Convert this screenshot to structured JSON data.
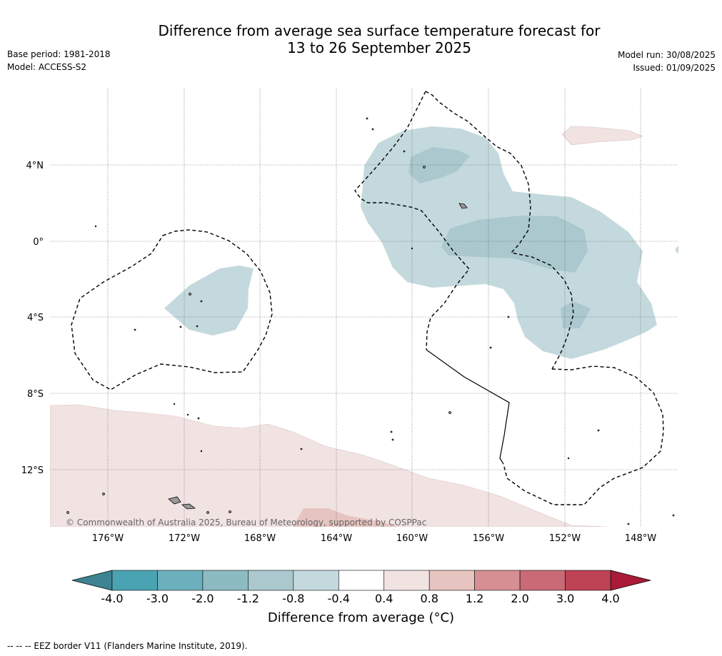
{
  "title_line1": "Difference from average sea surface temperature forecast for",
  "title_line2": "13 to 26 September 2025",
  "base_period": "Base period: 1981-2018",
  "model": "Model: ACCESS-S2",
  "model_run": "Model run: 30/08/2025",
  "issued": "Issued: 01/09/2025",
  "copyright": "© Commonwealth of Australia 2025, Bureau of Meteorology, supported by COSPPac",
  "lon_labels": [
    "176°W",
    "172°W",
    "168°W",
    "164°W",
    "160°W",
    "156°W",
    "152°W",
    "148°W"
  ],
  "lat_labels": [
    "4°N",
    "0°",
    "4°S",
    "8°S",
    "12°S"
  ],
  "colorbar": {
    "ticks": [
      "-4.0",
      "-3.0",
      "-2.0",
      "-1.2",
      "-0.8",
      "-0.4",
      "0.4",
      "0.8",
      "1.2",
      "2.0",
      "3.0",
      "4.0"
    ],
    "colors": [
      "#4aa3b3",
      "#6cb0bd",
      "#8dbbc2",
      "#aac8cd",
      "#c4d9dd",
      "#ffffff",
      "#f2e3e3",
      "#e6c4bf",
      "#d68f93",
      "#c96a76",
      "#be4355"
    ],
    "under_color": "#3e8391",
    "over_color": "#a91b38",
    "title": "Difference from average (°C)"
  },
  "legend_note": "--  --  -- EEZ border V11 (Flanders Marine Institute, 2019).",
  "colors": {
    "anomaly_neg_04": "#c4d9dd",
    "anomaly_neg_08": "#aac8cd",
    "anomaly_pos_04": "#f2e3e3",
    "anomaly_pos_08": "#e6c4bf"
  }
}
